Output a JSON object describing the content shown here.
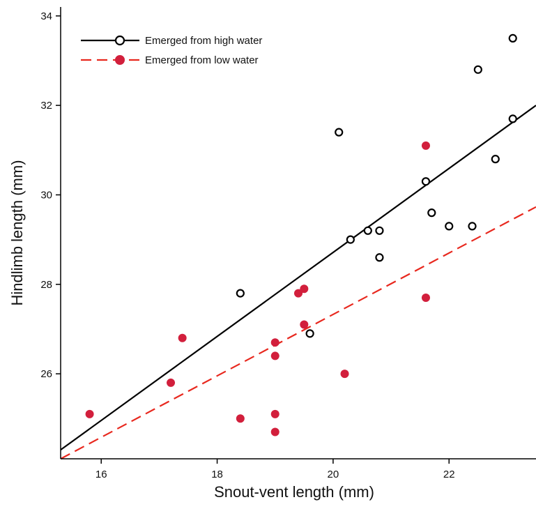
{
  "chart_data": {
    "type": "scatter",
    "xlabel": "Snout-vent length (mm)",
    "ylabel": "Hindlimb length (mm)",
    "xlim": [
      15.3,
      23.5
    ],
    "ylim": [
      24.1,
      34.2
    ],
    "xticks": [
      16,
      18,
      20,
      22
    ],
    "yticks": [
      26,
      28,
      30,
      32,
      34
    ],
    "grid": false,
    "legend_position": "top-left",
    "series": [
      {
        "name": "Emerged from high water",
        "marker": "open-circle",
        "line_style": "solid",
        "color": "#000000",
        "points": [
          [
            18.4,
            27.8
          ],
          [
            19.6,
            26.9
          ],
          [
            20.1,
            31.4
          ],
          [
            20.3,
            29.0
          ],
          [
            20.6,
            29.2
          ],
          [
            20.8,
            29.2
          ],
          [
            20.8,
            28.6
          ],
          [
            21.6,
            30.3
          ],
          [
            21.7,
            29.6
          ],
          [
            22.0,
            29.3
          ],
          [
            22.4,
            29.3
          ],
          [
            22.5,
            32.8
          ],
          [
            22.8,
            30.8
          ],
          [
            23.1,
            33.5
          ],
          [
            23.1,
            31.7
          ]
        ],
        "fit": {
          "x": [
            15.3,
            23.5
          ],
          "y": [
            24.3,
            32.0
          ]
        }
      },
      {
        "name": "Emerged from low water",
        "marker": "filled-circle",
        "line_style": "dashed",
        "color": "#d21f3c",
        "line_color": "#e8281e",
        "points": [
          [
            15.8,
            25.1
          ],
          [
            17.2,
            25.8
          ],
          [
            17.4,
            26.8
          ],
          [
            18.4,
            25.0
          ],
          [
            19.0,
            26.7
          ],
          [
            19.0,
            26.4
          ],
          [
            19.0,
            25.1
          ],
          [
            19.0,
            24.7
          ],
          [
            19.4,
            27.8
          ],
          [
            19.5,
            27.9
          ],
          [
            19.5,
            27.1
          ],
          [
            20.2,
            26.0
          ],
          [
            21.6,
            31.1
          ],
          [
            21.6,
            27.7
          ]
        ],
        "fit": {
          "x": [
            15.3,
            23.5
          ],
          "y": [
            24.1,
            29.73
          ]
        }
      }
    ]
  }
}
